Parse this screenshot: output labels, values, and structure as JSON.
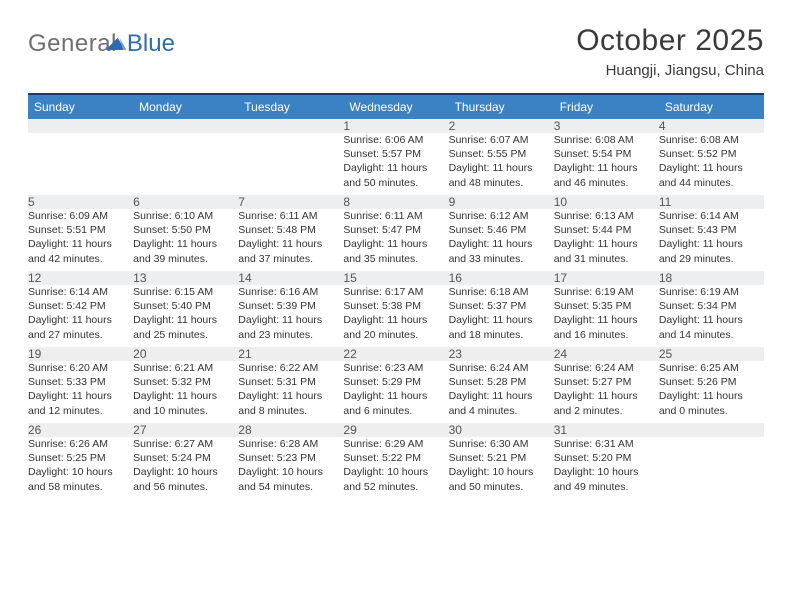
{
  "logo": {
    "word1": "General",
    "word2": "Blue"
  },
  "title": "October 2025",
  "location": "Huangji, Jiangsu, China",
  "colors": {
    "header_bg": "#3b82c4",
    "header_text": "#ffffff",
    "rule": "#1a3a70",
    "daynum_bg": "#eceef0",
    "text": "#333333",
    "logo_gray": "#6f6f6f",
    "logo_blue": "#2e6bb0"
  },
  "days_of_week": [
    "Sunday",
    "Monday",
    "Tuesday",
    "Wednesday",
    "Thursday",
    "Friday",
    "Saturday"
  ],
  "first_weekday_index": 3,
  "days": [
    {
      "n": 1,
      "sunrise": "6:06 AM",
      "sunset": "5:57 PM",
      "dl_h": 11,
      "dl_m": 50
    },
    {
      "n": 2,
      "sunrise": "6:07 AM",
      "sunset": "5:55 PM",
      "dl_h": 11,
      "dl_m": 48
    },
    {
      "n": 3,
      "sunrise": "6:08 AM",
      "sunset": "5:54 PM",
      "dl_h": 11,
      "dl_m": 46
    },
    {
      "n": 4,
      "sunrise": "6:08 AM",
      "sunset": "5:52 PM",
      "dl_h": 11,
      "dl_m": 44
    },
    {
      "n": 5,
      "sunrise": "6:09 AM",
      "sunset": "5:51 PM",
      "dl_h": 11,
      "dl_m": 42
    },
    {
      "n": 6,
      "sunrise": "6:10 AM",
      "sunset": "5:50 PM",
      "dl_h": 11,
      "dl_m": 39
    },
    {
      "n": 7,
      "sunrise": "6:11 AM",
      "sunset": "5:48 PM",
      "dl_h": 11,
      "dl_m": 37
    },
    {
      "n": 8,
      "sunrise": "6:11 AM",
      "sunset": "5:47 PM",
      "dl_h": 11,
      "dl_m": 35
    },
    {
      "n": 9,
      "sunrise": "6:12 AM",
      "sunset": "5:46 PM",
      "dl_h": 11,
      "dl_m": 33
    },
    {
      "n": 10,
      "sunrise": "6:13 AM",
      "sunset": "5:44 PM",
      "dl_h": 11,
      "dl_m": 31
    },
    {
      "n": 11,
      "sunrise": "6:14 AM",
      "sunset": "5:43 PM",
      "dl_h": 11,
      "dl_m": 29
    },
    {
      "n": 12,
      "sunrise": "6:14 AM",
      "sunset": "5:42 PM",
      "dl_h": 11,
      "dl_m": 27
    },
    {
      "n": 13,
      "sunrise": "6:15 AM",
      "sunset": "5:40 PM",
      "dl_h": 11,
      "dl_m": 25
    },
    {
      "n": 14,
      "sunrise": "6:16 AM",
      "sunset": "5:39 PM",
      "dl_h": 11,
      "dl_m": 23
    },
    {
      "n": 15,
      "sunrise": "6:17 AM",
      "sunset": "5:38 PM",
      "dl_h": 11,
      "dl_m": 20
    },
    {
      "n": 16,
      "sunrise": "6:18 AM",
      "sunset": "5:37 PM",
      "dl_h": 11,
      "dl_m": 18
    },
    {
      "n": 17,
      "sunrise": "6:19 AM",
      "sunset": "5:35 PM",
      "dl_h": 11,
      "dl_m": 16
    },
    {
      "n": 18,
      "sunrise": "6:19 AM",
      "sunset": "5:34 PM",
      "dl_h": 11,
      "dl_m": 14
    },
    {
      "n": 19,
      "sunrise": "6:20 AM",
      "sunset": "5:33 PM",
      "dl_h": 11,
      "dl_m": 12
    },
    {
      "n": 20,
      "sunrise": "6:21 AM",
      "sunset": "5:32 PM",
      "dl_h": 11,
      "dl_m": 10
    },
    {
      "n": 21,
      "sunrise": "6:22 AM",
      "sunset": "5:31 PM",
      "dl_h": 11,
      "dl_m": 8
    },
    {
      "n": 22,
      "sunrise": "6:23 AM",
      "sunset": "5:29 PM",
      "dl_h": 11,
      "dl_m": 6
    },
    {
      "n": 23,
      "sunrise": "6:24 AM",
      "sunset": "5:28 PM",
      "dl_h": 11,
      "dl_m": 4
    },
    {
      "n": 24,
      "sunrise": "6:24 AM",
      "sunset": "5:27 PM",
      "dl_h": 11,
      "dl_m": 2
    },
    {
      "n": 25,
      "sunrise": "6:25 AM",
      "sunset": "5:26 PM",
      "dl_h": 11,
      "dl_m": 0
    },
    {
      "n": 26,
      "sunrise": "6:26 AM",
      "sunset": "5:25 PM",
      "dl_h": 10,
      "dl_m": 58
    },
    {
      "n": 27,
      "sunrise": "6:27 AM",
      "sunset": "5:24 PM",
      "dl_h": 10,
      "dl_m": 56
    },
    {
      "n": 28,
      "sunrise": "6:28 AM",
      "sunset": "5:23 PM",
      "dl_h": 10,
      "dl_m": 54
    },
    {
      "n": 29,
      "sunrise": "6:29 AM",
      "sunset": "5:22 PM",
      "dl_h": 10,
      "dl_m": 52
    },
    {
      "n": 30,
      "sunrise": "6:30 AM",
      "sunset": "5:21 PM",
      "dl_h": 10,
      "dl_m": 50
    },
    {
      "n": 31,
      "sunrise": "6:31 AM",
      "sunset": "5:20 PM",
      "dl_h": 10,
      "dl_m": 49
    }
  ],
  "labels": {
    "sunrise": "Sunrise:",
    "sunset": "Sunset:",
    "daylight": "Daylight:",
    "hours": "hours",
    "and": "and",
    "minutes": "minutes."
  }
}
